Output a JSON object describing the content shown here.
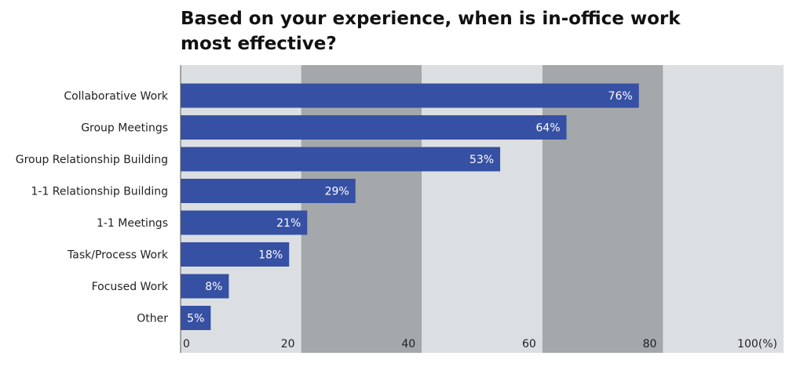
{
  "chart_data": {
    "type": "bar",
    "orientation": "horizontal",
    "title_lines": [
      "Based on your experience, when is in-office work",
      "most effective?"
    ],
    "categories": [
      "Collaborative Work",
      "Group Meetings",
      "Group Relationship Building",
      "1-1 Relationship Building",
      "1-1 Meetings",
      "Task/Process Work",
      "Focused Work",
      "Other"
    ],
    "values": [
      76,
      64,
      53,
      29,
      21,
      18,
      8,
      5
    ],
    "data_labels": [
      "76%",
      "64%",
      "53%",
      "29%",
      "21%",
      "18%",
      "8%",
      "5%"
    ],
    "x_ticks": [
      "0",
      "20",
      "40",
      "60",
      "80",
      "100(%)"
    ],
    "xlim": [
      0,
      100
    ],
    "grid": "alternating bands",
    "colors": {
      "bar": "#3650a3",
      "band_light": "#dcdfe2",
      "band_dark": "#a4a8ab",
      "axis": "#555555"
    }
  }
}
